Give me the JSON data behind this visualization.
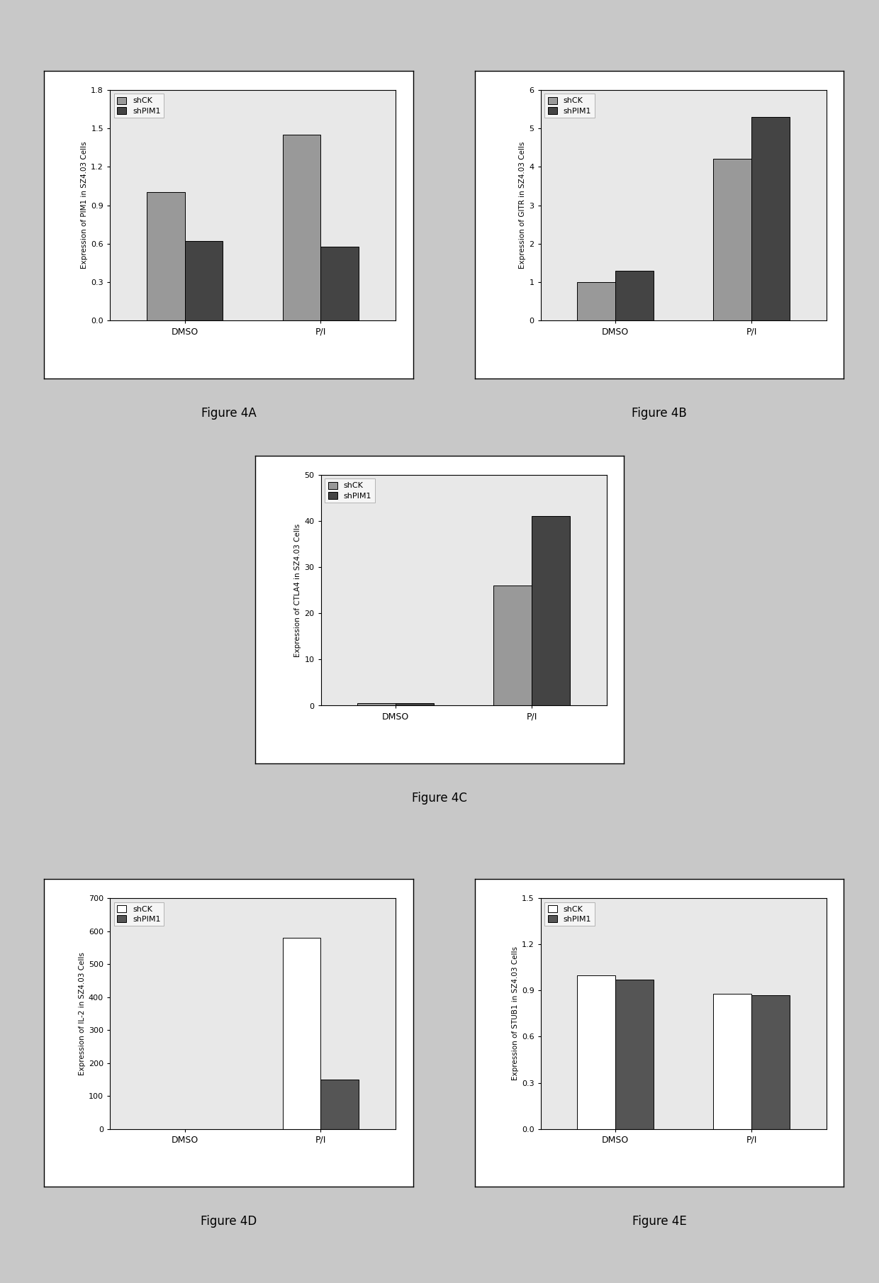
{
  "fig4A": {
    "title": "Figure 4A",
    "ylabel": "Expression of PIM1 in SZ4.03 Cells",
    "categories": [
      "DMSO",
      "P/I"
    ],
    "shCK": [
      1.0,
      1.45
    ],
    "shPIM1": [
      0.62,
      0.58
    ],
    "ylim": [
      0,
      1.8
    ],
    "yticks": [
      0.0,
      0.3,
      0.6,
      0.9,
      1.2,
      1.5,
      1.8
    ]
  },
  "fig4B": {
    "title": "Figure 4B",
    "ylabel": "Expression of GITR in SZ4.03 Cells",
    "categories": [
      "DMSO",
      "P/I"
    ],
    "shCK": [
      1.0,
      4.2
    ],
    "shPIM1": [
      1.3,
      5.3
    ],
    "ylim": [
      0,
      6
    ],
    "yticks": [
      0,
      1,
      2,
      3,
      4,
      5,
      6
    ]
  },
  "fig4C": {
    "title": "Figure 4C",
    "ylabel": "Expression of CTLA4 in SZ4.03 Cells",
    "categories": [
      "DMSO",
      "P/I"
    ],
    "shCK": [
      0.5,
      26.0
    ],
    "shPIM1": [
      0.5,
      41.0
    ],
    "ylim": [
      0,
      50
    ],
    "yticks": [
      0,
      10,
      20,
      30,
      40,
      50
    ]
  },
  "fig4D": {
    "title": "Figure 4D",
    "ylabel": "Expression of IL-2 in SZ4.03 Cells",
    "categories": [
      "DMSO",
      "P/I"
    ],
    "shCK": [
      0.0,
      580.0
    ],
    "shPIM1": [
      0.0,
      150.0
    ],
    "ylim": [
      0,
      700
    ],
    "yticks": [
      0,
      100,
      200,
      300,
      400,
      500,
      600,
      700
    ]
  },
  "fig4E": {
    "title": "Figure 4E",
    "ylabel": "Expression of STUB1 in SZ4.03 Cells",
    "categories": [
      "DMSO",
      "P/I"
    ],
    "shCK": [
      1.0,
      0.88
    ],
    "shPIM1": [
      0.97,
      0.87
    ],
    "ylim": [
      0,
      1.5
    ],
    "yticks": [
      0.0,
      0.3,
      0.6,
      0.9,
      1.2,
      1.5
    ]
  },
  "shCK_color_gray": "#999999",
  "shPIM1_color_dark": "#444444",
  "shCK_color_white": "#ffffff",
  "shPIM1_color_dark2": "#555555",
  "bar_width": 0.28,
  "fig_bg": "#c8c8c8",
  "panel_bg": "#ffffff",
  "plot_bg": "#e8e8e8"
}
